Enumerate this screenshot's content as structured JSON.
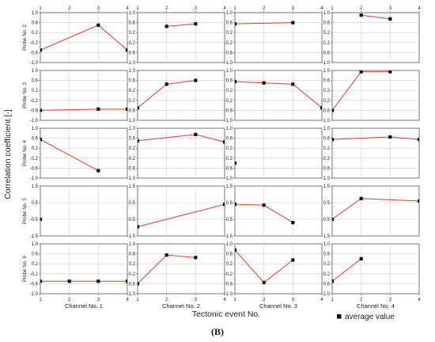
{
  "figure_label": "(B)",
  "chart_data": {
    "type": "line",
    "ylabel": "Correlation coefficient [-]",
    "xlabel": "Tectonic event No.",
    "legend": {
      "label": "average value",
      "placement": "bottom-right",
      "marker": "filled-square"
    },
    "x_ticks": [
      "1",
      "2",
      "3",
      "4"
    ],
    "row_labels": [
      "Probe No. 2",
      "Probe No. 3",
      "Probe No. 4",
      "Probe No. 5",
      "Probe No. 6"
    ],
    "column_labels": [
      "Channel No. 1",
      "Channel No. 2",
      "Channel No. 3",
      "Channel No. 4"
    ],
    "y_ticks_by_row": [
      [
        "1.0",
        "0.6",
        "0.2",
        "-0.2",
        "-0.6",
        "-1.0"
      ],
      [
        "1.0",
        "0.6",
        "0.2",
        "-0.2",
        "-0.6",
        "-1.0"
      ],
      [
        "1.0",
        "0.6",
        "0.2",
        "-0.2",
        "-0.6",
        "-1.0"
      ],
      [
        "1.5",
        "0.5",
        "-0.5",
        "-1.5"
      ],
      [
        "1.0",
        "0.6",
        "0.2",
        "-0.2",
        "-0.6",
        "-1.0"
      ]
    ],
    "ylims_by_row": [
      [
        -1,
        1
      ],
      [
        -1,
        1
      ],
      [
        -1,
        1
      ],
      [
        -1.5,
        1.5
      ],
      [
        -1,
        1
      ]
    ],
    "xlim": [
      1,
      4
    ],
    "line_color": "#e53935",
    "marker_color": "#111111",
    "grid": true,
    "panels": [
      {
        "probe": "Probe No. 2",
        "channel": "Channel No. 1",
        "x": [
          1,
          3,
          4
        ],
        "y": [
          -0.5,
          0.5,
          -0.5
        ]
      },
      {
        "probe": "Probe No. 2",
        "channel": "Channel No. 2",
        "x": [
          2,
          3
        ],
        "y": [
          0.45,
          0.55
        ]
      },
      {
        "probe": "Probe No. 2",
        "channel": "Channel No. 3",
        "x": [
          1,
          3
        ],
        "y": [
          0.55,
          0.6
        ]
      },
      {
        "probe": "Probe No. 2",
        "channel": "Channel No. 4",
        "x": [
          2,
          3
        ],
        "y": [
          0.9,
          0.75
        ]
      },
      {
        "probe": "Probe No. 3",
        "channel": "Channel No. 1",
        "x": [
          1,
          3,
          4
        ],
        "y": [
          -0.6,
          -0.55,
          -0.55
        ]
      },
      {
        "probe": "Probe No. 3",
        "channel": "Channel No. 2",
        "x": [
          1,
          2,
          3
        ],
        "y": [
          -0.5,
          0.45,
          0.6
        ]
      },
      {
        "probe": "Probe No. 3",
        "channel": "Channel No. 3",
        "x": [
          1,
          2,
          3,
          4
        ],
        "y": [
          0.55,
          0.5,
          0.45,
          -0.5
        ]
      },
      {
        "probe": "Probe No. 3",
        "channel": "Channel No. 4",
        "x": [
          1,
          2,
          3
        ],
        "y": [
          -0.6,
          0.95,
          0.95
        ]
      },
      {
        "probe": "Probe No. 4",
        "channel": "Channel No. 1",
        "x": [
          1,
          3
        ],
        "y": [
          0.55,
          -0.7
        ]
      },
      {
        "probe": "Probe No. 4",
        "channel": "Channel No. 2",
        "x": [
          1,
          3,
          4
        ],
        "y": [
          0.5,
          0.75,
          0.45
        ]
      },
      {
        "probe": "Probe No. 4",
        "channel": "Channel No. 3",
        "x": [
          1
        ],
        "y": [
          -0.4
        ]
      },
      {
        "probe": "Probe No. 4",
        "channel": "Channel No. 4",
        "x": [
          1,
          3,
          4
        ],
        "y": [
          0.55,
          0.65,
          0.55
        ]
      },
      {
        "probe": "Probe No. 5",
        "channel": "Channel No. 1",
        "x": [
          1
        ],
        "y": [
          -0.5
        ]
      },
      {
        "probe": "Probe No. 5",
        "channel": "Channel No. 2",
        "x": [
          1,
          4
        ],
        "y": [
          -0.95,
          0.4
        ]
      },
      {
        "probe": "Probe No. 5",
        "channel": "Channel No. 3",
        "x": [
          1,
          2,
          3
        ],
        "y": [
          0.4,
          0.35,
          -0.7
        ]
      },
      {
        "probe": "Probe No. 5",
        "channel": "Channel No. 4",
        "x": [
          1,
          2,
          4
        ],
        "y": [
          -0.5,
          0.75,
          0.6
        ]
      },
      {
        "probe": "Probe No. 6",
        "channel": "Channel No. 1",
        "x": [
          1,
          2,
          3,
          4
        ],
        "y": [
          -0.5,
          -0.5,
          -0.5,
          -0.5
        ]
      },
      {
        "probe": "Probe No. 6",
        "channel": "Channel No. 2",
        "x": [
          1,
          2,
          3
        ],
        "y": [
          -0.6,
          0.55,
          0.45
        ]
      },
      {
        "probe": "Probe No. 6",
        "channel": "Channel No. 3",
        "x": [
          1,
          2,
          3
        ],
        "y": [
          0.75,
          -0.55,
          0.35
        ]
      },
      {
        "probe": "Probe No. 6",
        "channel": "Channel No. 4",
        "x": [
          1,
          2
        ],
        "y": [
          -0.5,
          0.4
        ]
      }
    ]
  }
}
